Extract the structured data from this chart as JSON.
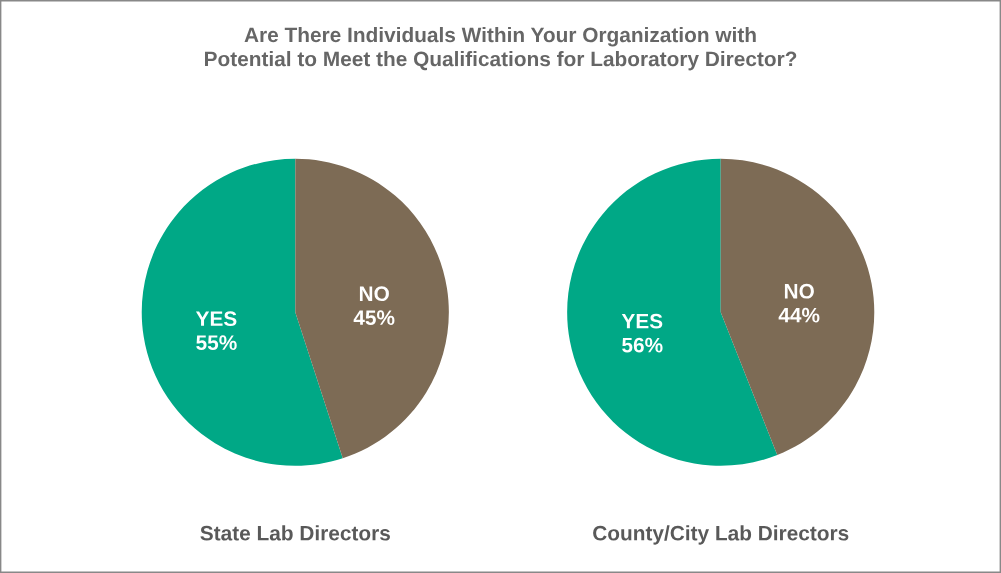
{
  "chart_data": [
    {
      "type": "pie",
      "title": "Are There Individuals Within Your Organization with\nPotential to Meet the Qualifications for Laboratory Director?",
      "xlabel": "State Lab Directors",
      "categories": [
        "YES",
        "NO"
      ],
      "values": [
        55,
        45
      ],
      "value_labels": [
        "55%",
        "45%"
      ],
      "colors": [
        "#00a886",
        "#7d6b55"
      ]
    },
    {
      "type": "pie",
      "xlabel": "County/City Lab Directors",
      "categories": [
        "YES",
        "NO"
      ],
      "values": [
        56,
        44
      ],
      "value_labels": [
        "56%",
        "44%"
      ],
      "colors": [
        "#00a886",
        "#7d6b55"
      ]
    }
  ]
}
